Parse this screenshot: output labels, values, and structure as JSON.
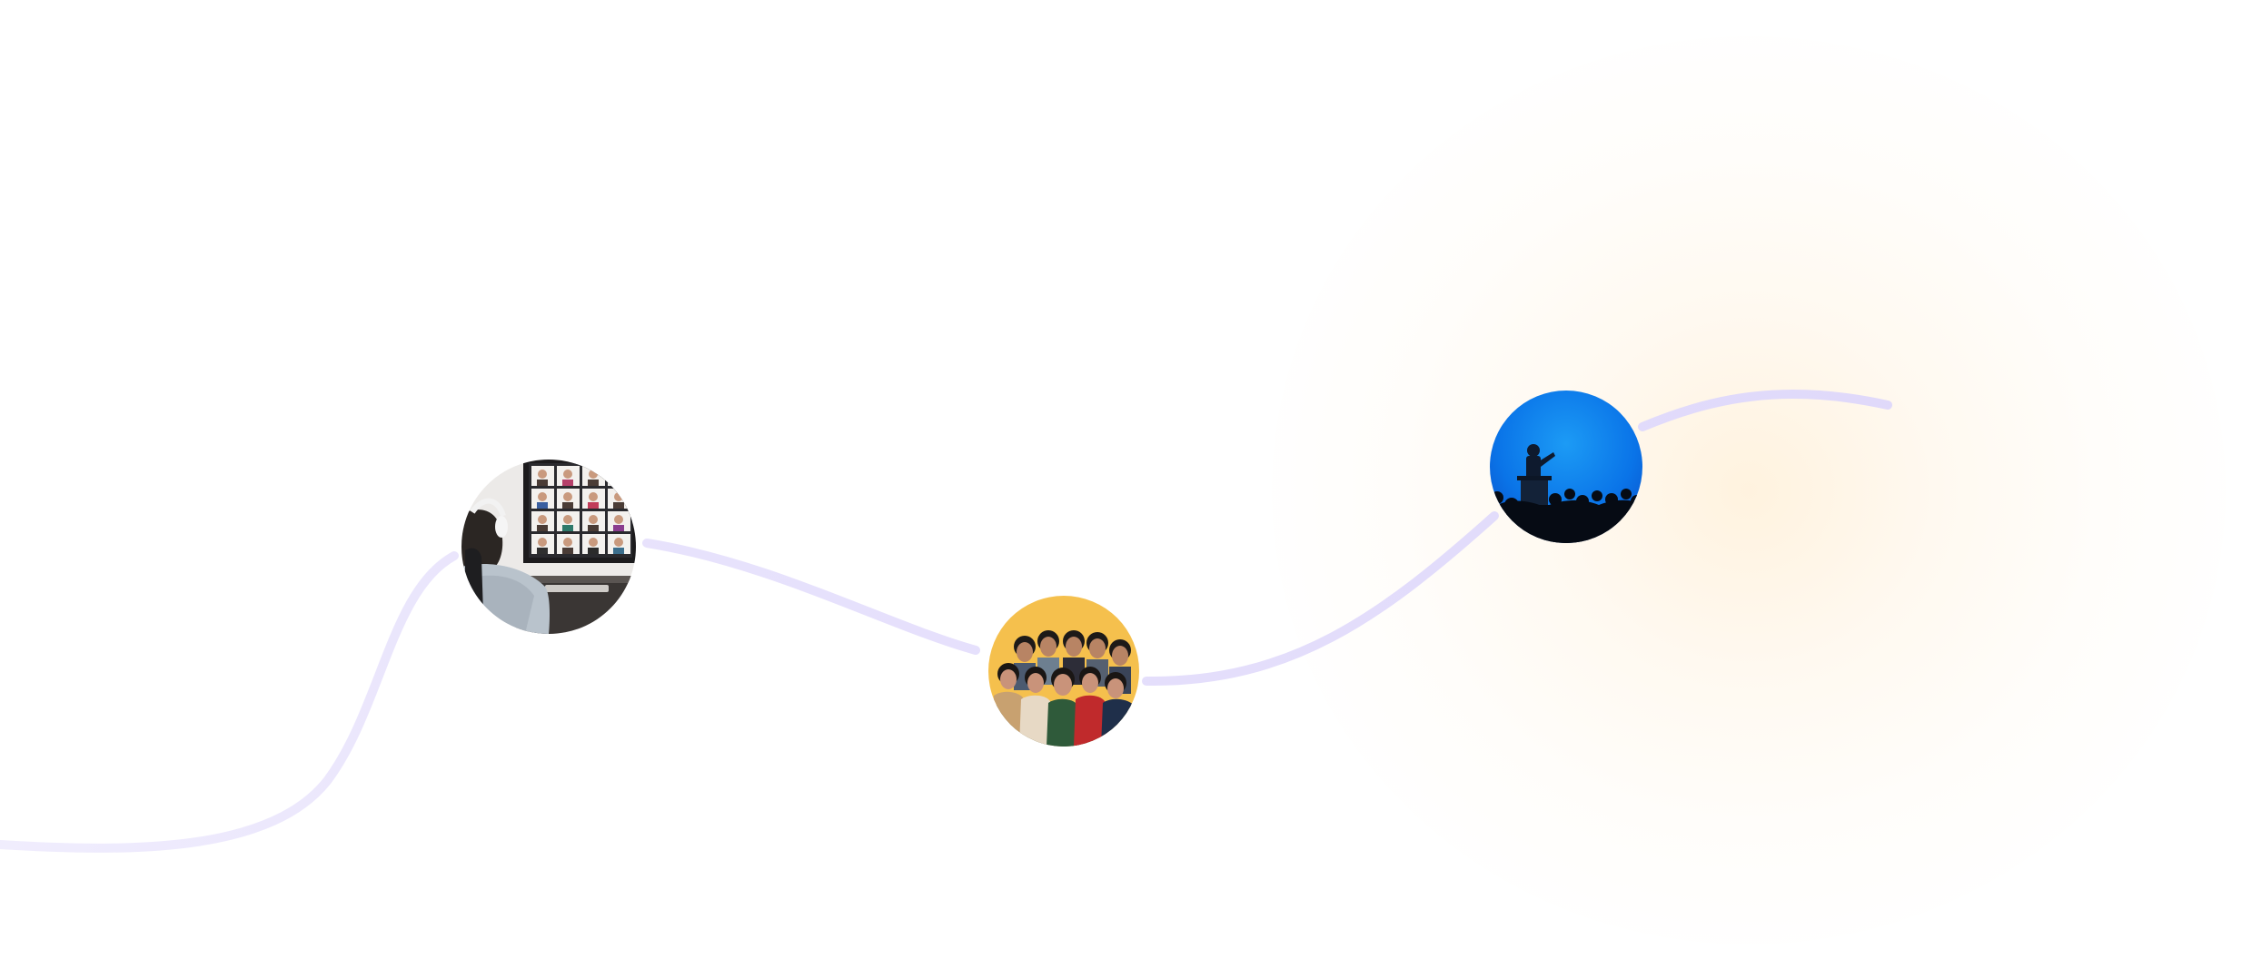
{
  "colors": {
    "path": "#e2dcfb",
    "path_faded": "#ece8fd",
    "glow": "#fff0da"
  },
  "nodes": [
    {
      "image": "video-conference-photo"
    },
    {
      "image": "group-selfie-photo"
    },
    {
      "image": "speaker-audience-photo"
    }
  ]
}
